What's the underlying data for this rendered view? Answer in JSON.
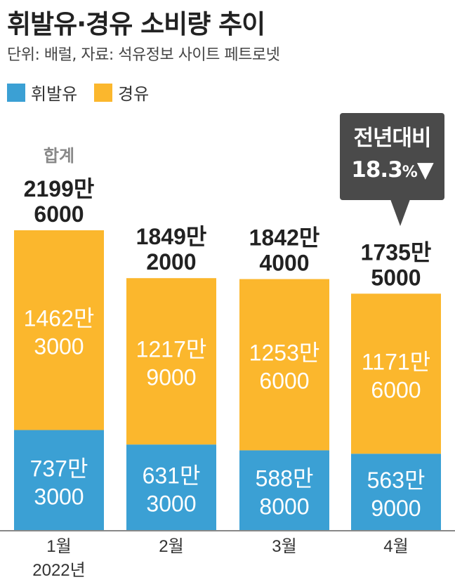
{
  "title": "휘발유·경유 소비량 추이",
  "subtitle": "단위: 배럴, 자료: 석유정보 사이트 페트로넷",
  "legend": [
    {
      "label": "휘발유",
      "color": "#3ba0d4"
    },
    {
      "label": "경유",
      "color": "#fbb72d"
    }
  ],
  "callout": {
    "line1": "전년대비",
    "value": "18.3",
    "unit": "%",
    "arrow": "▼"
  },
  "chart_data": {
    "type": "bar",
    "stacked": true,
    "total_caption": "합계",
    "categories": [
      "1월",
      "2월",
      "3월",
      "4월"
    ],
    "category_sublabels": [
      "2022년",
      "",
      "",
      ""
    ],
    "series": [
      {
        "name": "휘발유",
        "color": "#3ba0d4",
        "values": [
          7373000,
          6313000,
          5888000,
          5639000
        ],
        "labels": [
          [
            "737만",
            "3000"
          ],
          [
            "631만",
            "3000"
          ],
          [
            "588만",
            "8000"
          ],
          [
            "563만",
            "9000"
          ]
        ]
      },
      {
        "name": "경유",
        "color": "#fbb72d",
        "values": [
          14623000,
          12179000,
          12536000,
          11716000
        ],
        "labels": [
          [
            "1462만",
            "3000"
          ],
          [
            "1217만",
            "9000"
          ],
          [
            "1253만",
            "6000"
          ],
          [
            "1171만",
            "6000"
          ]
        ]
      }
    ],
    "totals": [
      21996000,
      18492000,
      18424000,
      17355000
    ],
    "total_labels": [
      [
        "2199만",
        "6000"
      ],
      [
        "1849만",
        "2000"
      ],
      [
        "1842만",
        "4000"
      ],
      [
        "1735만",
        "5000"
      ]
    ],
    "colors": {
      "baseline": "#888888",
      "label_on_bar": "#ffffff",
      "total_label": "#222222",
      "caption": "#888888"
    }
  }
}
